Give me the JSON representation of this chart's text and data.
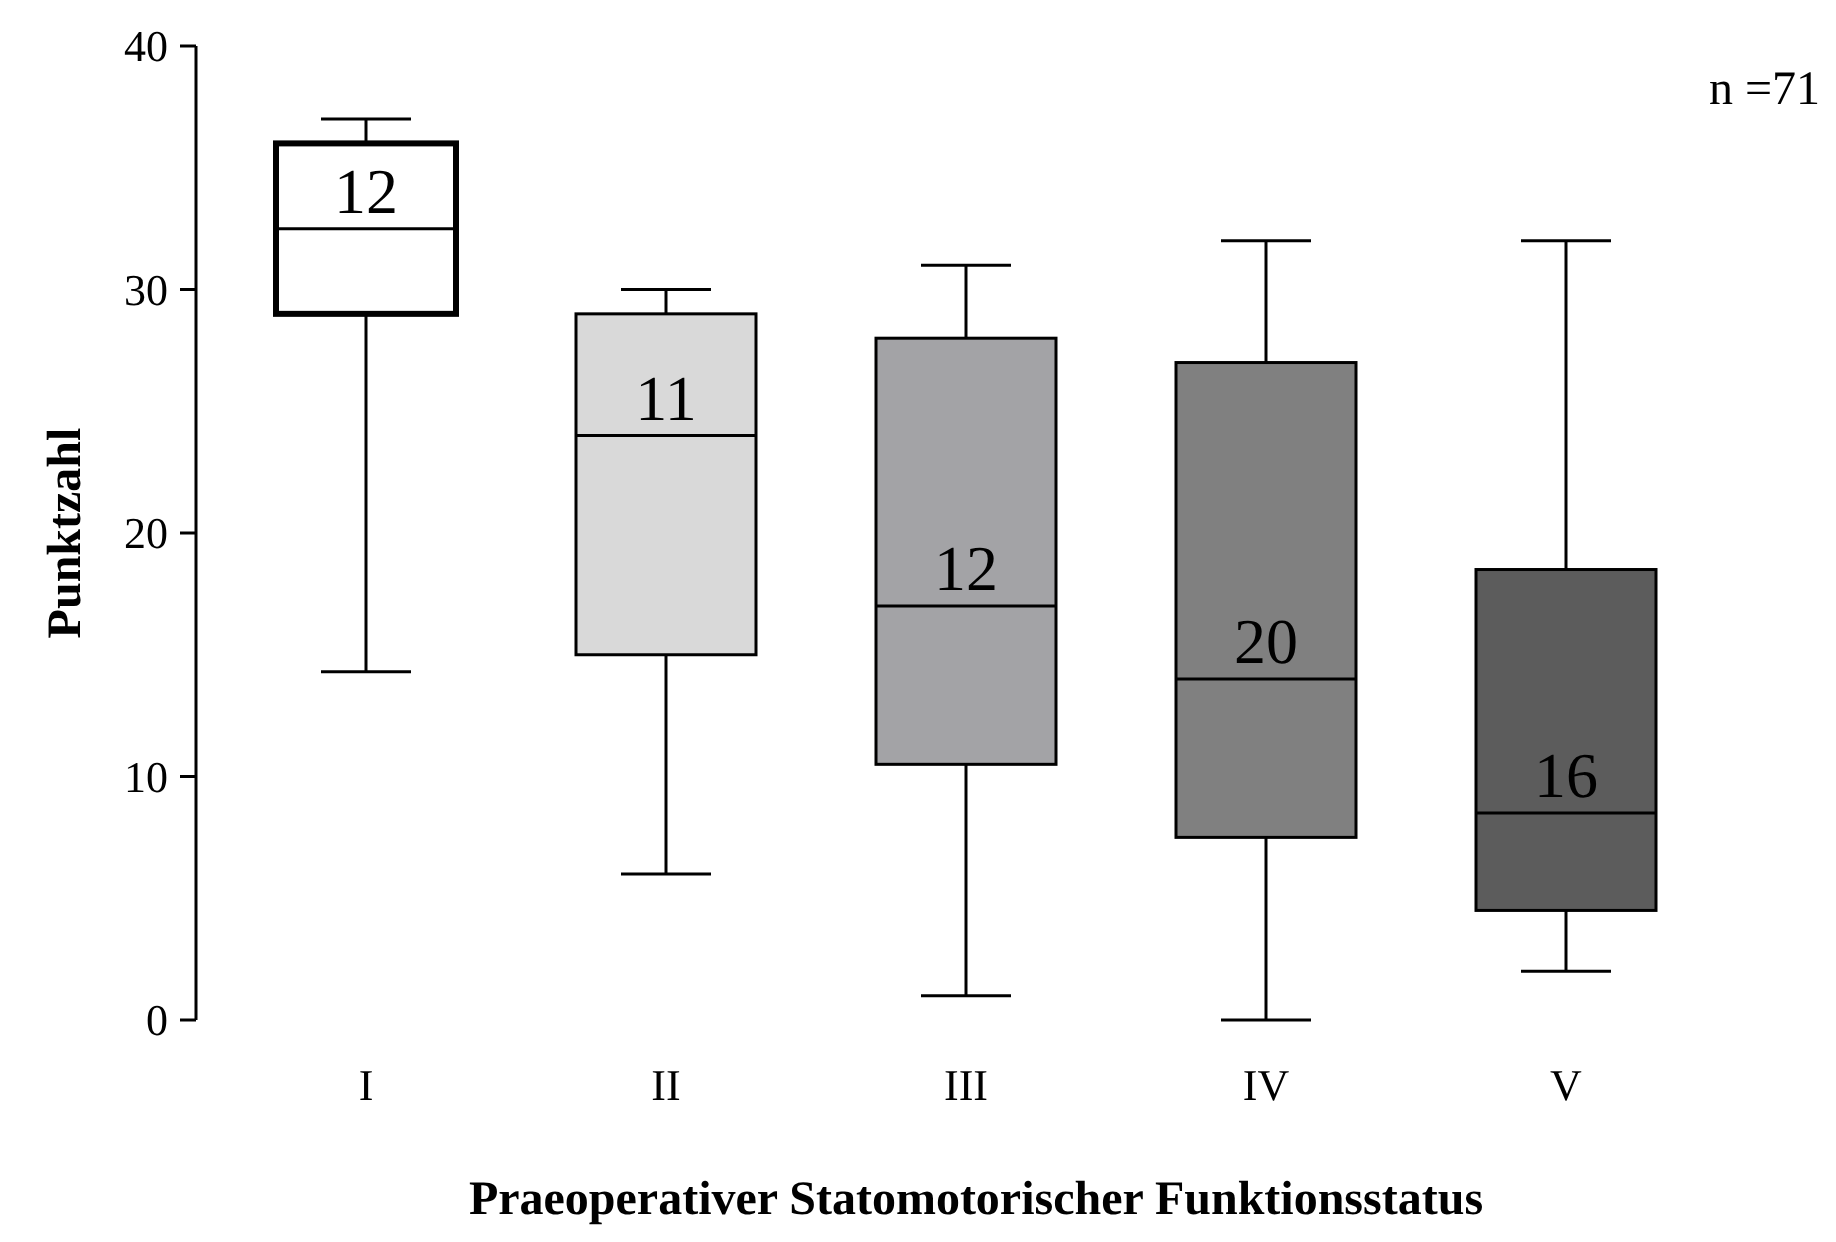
{
  "chart_data": {
    "type": "box",
    "xlabel": "Praeoperativer Statomotorischer Funktionsstatus",
    "ylabel": "Punktzahl",
    "categories": [
      "I",
      "II",
      "III",
      "IV",
      "V"
    ],
    "boxes": [
      {
        "low": 14.3,
        "q1": 29,
        "median": 32.5,
        "q3": 36,
        "high": 37
      },
      {
        "low": 6,
        "q1": 15,
        "median": 24,
        "q3": 29,
        "high": 30
      },
      {
        "low": 1,
        "q1": 10.5,
        "median": 17,
        "q3": 28,
        "high": 31
      },
      {
        "low": 0,
        "q1": 7.5,
        "median": 14,
        "q3": 27,
        "high": 32
      },
      {
        "low": 2,
        "q1": 4.5,
        "median": 8.5,
        "q3": 18.5,
        "high": 32
      }
    ],
    "colors": [
      "#ffffff",
      "#d9d9d9",
      "#a3a3a6",
      "#808080",
      "#5c5c5c"
    ],
    "ylim": [
      0,
      40
    ],
    "yticks": [
      0,
      10,
      20,
      30,
      40
    ],
    "grid": false,
    "annotations": [
      "12",
      "11",
      "12",
      "20",
      "16",
      "n =71"
    ]
  }
}
